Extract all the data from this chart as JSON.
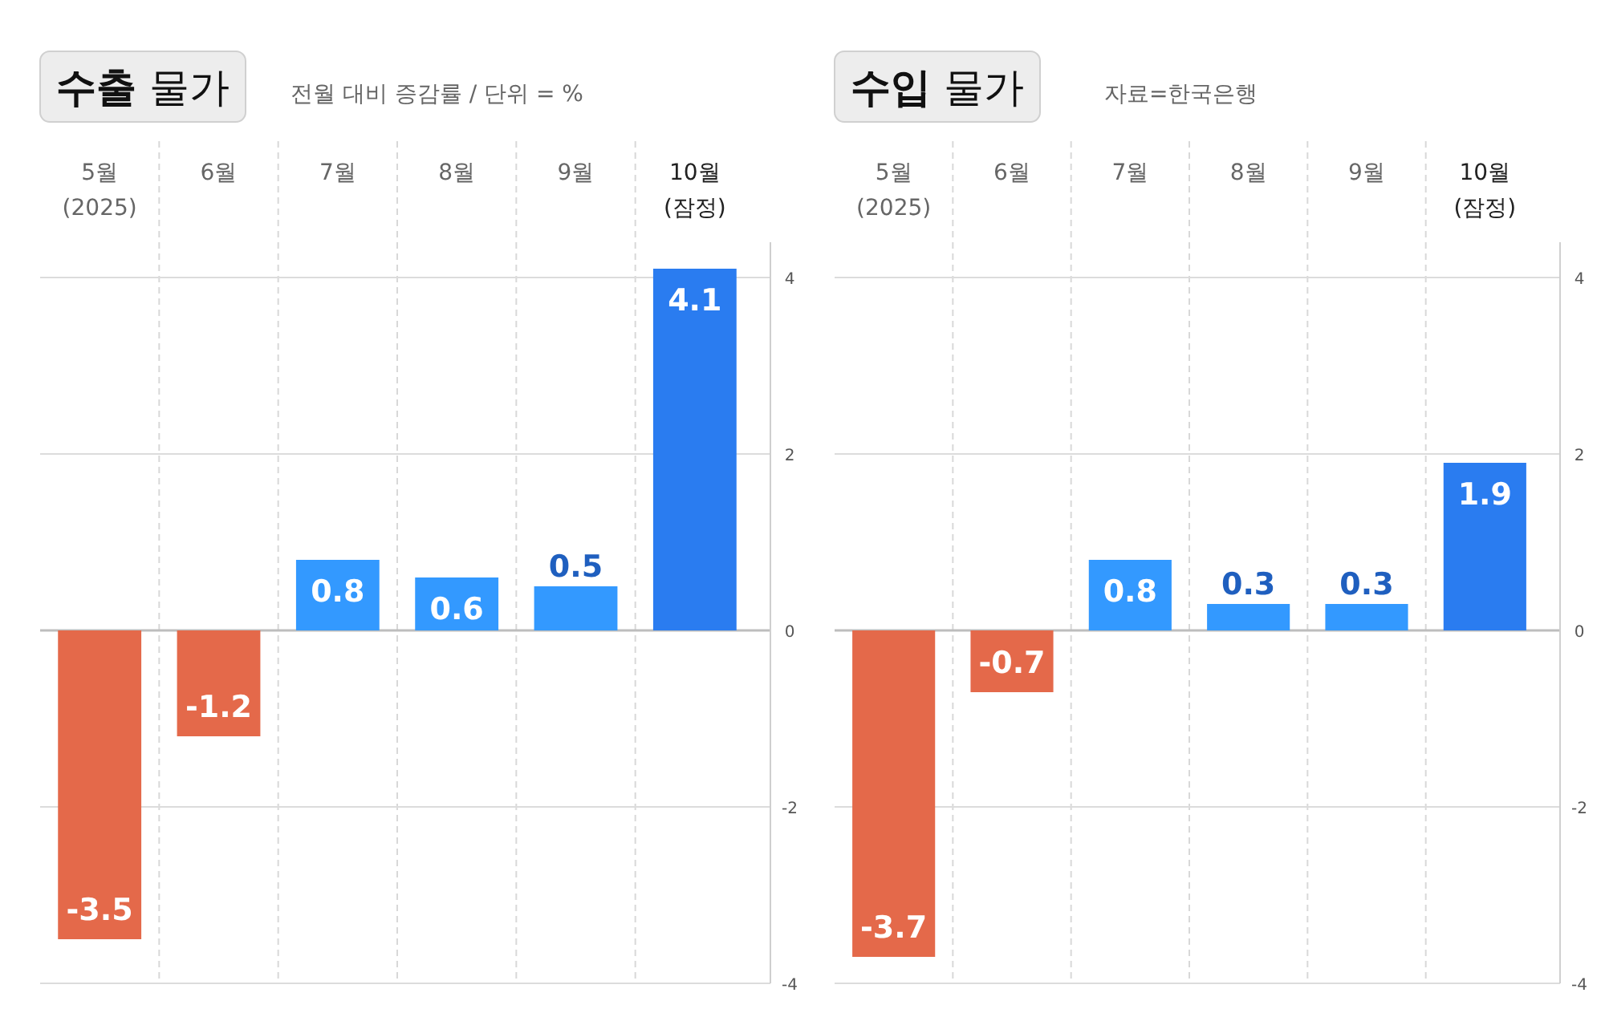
{
  "chart_data": [
    {
      "type": "bar",
      "title": "**수출** 물가",
      "subtitle": "전월 대비 증감률 / 단위 = %",
      "categories": [
        "5월 (2025)",
        "6월",
        "7월",
        "8월",
        "9월",
        "10월 (잠정)"
      ],
      "values": [
        -3.5,
        -1.2,
        0.8,
        0.6,
        0.5,
        4.1
      ],
      "colors": [
        "#e4694a",
        "#e4694a",
        "#3399ff",
        "#3399ff",
        "#3399ff",
        "#2a7cf0"
      ],
      "ylim": [
        -4,
        4.4
      ],
      "yticks": [
        -4,
        -2,
        0,
        2,
        4
      ],
      "grid": "y",
      "data_labels": true
    },
    {
      "type": "bar",
      "title": "**수입** 물가",
      "annotations": [
        "자료=한국은행"
      ],
      "categories": [
        "5월 (2025)",
        "6월",
        "7월",
        "8월",
        "9월",
        "10월 (잠정)"
      ],
      "values": [
        -3.7,
        -0.7,
        0.8,
        0.3,
        0.3,
        1.9
      ],
      "colors": [
        "#e4694a",
        "#e4694a",
        "#3399ff",
        "#3399ff",
        "#3399ff",
        "#2a7cf0"
      ],
      "ylim": [
        -4,
        4.4
      ],
      "yticks": [
        -4,
        -2,
        0,
        2,
        4
      ],
      "grid": "y",
      "data_labels": true
    }
  ]
}
